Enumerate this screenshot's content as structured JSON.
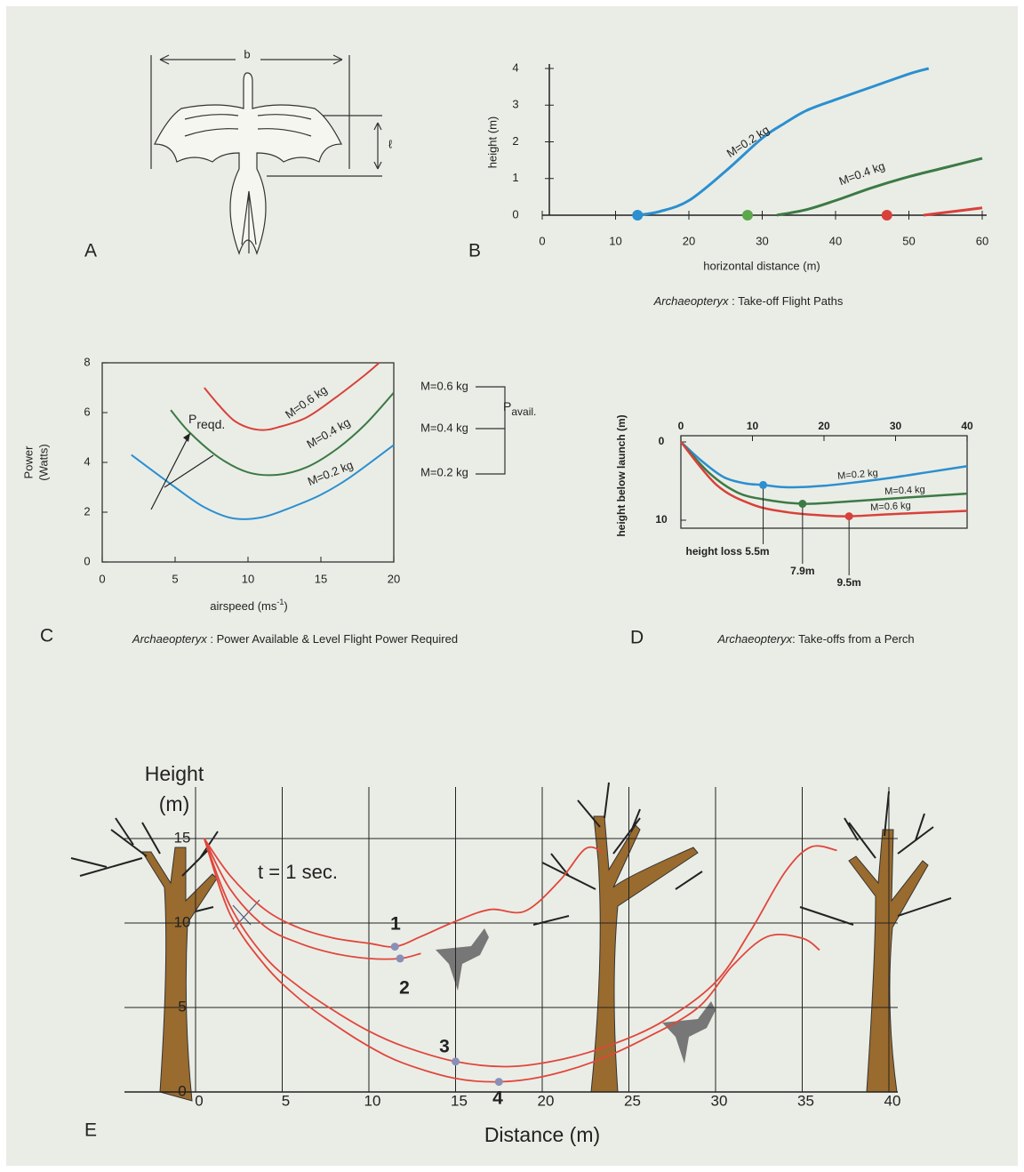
{
  "figure_a": {
    "label": "A",
    "span_label": "b",
    "length_label": "ℓ"
  },
  "chart_data": [
    {
      "type": "line",
      "label": "B",
      "title": [
        "Archaeopteryx",
        " : Take-off Flight Paths"
      ],
      "x_label": "horizontal distance (m)",
      "y_label": "height (m)",
      "xlim": [
        0,
        60
      ],
      "ylim": [
        0,
        4
      ],
      "xticks": [
        0,
        10,
        20,
        30,
        40,
        50,
        60
      ],
      "yticks": [
        0,
        1,
        2,
        3,
        4
      ],
      "series": [
        {
          "name": "M=0.2 kg",
          "color": "#2b8fd0",
          "x": [
            13,
            16,
            20,
            25,
            30,
            33,
            36,
            40,
            45,
            50,
            52.7
          ],
          "values": [
            0,
            0.1,
            0.4,
            1.2,
            2.1,
            2.5,
            2.85,
            3.15,
            3.5,
            3.85,
            4.0
          ]
        },
        {
          "name": "M=0.4 kg",
          "color": "#3c7a45",
          "x": [
            32,
            36,
            40,
            45,
            50,
            55,
            60
          ],
          "values": [
            0,
            0.15,
            0.4,
            0.75,
            1.05,
            1.3,
            1.55
          ]
        },
        {
          "color": "#d8413a",
          "x": [
            52,
            56,
            60
          ],
          "values": [
            0,
            0.1,
            0.2
          ]
        }
      ],
      "markers": {
        "x": [
          13,
          28,
          47
        ],
        "values": [
          0,
          0,
          0
        ],
        "colors": [
          "#2b8fd0",
          "#5aa84a",
          "#d8413a"
        ]
      }
    },
    {
      "type": "line",
      "label": "C",
      "title": [
        "Archaeopteryx",
        " : Power Available & Level Flight Power Required"
      ],
      "x_label": [
        "airspeed (ms",
        "-1",
        ")"
      ],
      "y_label": [
        "Power",
        "(Watts)"
      ],
      "xlim": [
        0,
        20
      ],
      "ylim": [
        0,
        8
      ],
      "xticks": [
        0,
        5,
        10,
        15,
        20
      ],
      "yticks": [
        0,
        2,
        4,
        6,
        8
      ],
      "series": [
        {
          "name": "M=0.6 kg",
          "color": "#d8413a",
          "x": [
            7,
            8,
            9,
            10,
            11,
            12,
            14,
            16,
            18,
            19
          ],
          "values": [
            7.0,
            6.3,
            5.7,
            5.4,
            5.3,
            5.4,
            5.8,
            6.6,
            7.5,
            8.0
          ]
        },
        {
          "name": "M=0.4 kg",
          "color": "#3c7a45",
          "x": [
            4.7,
            6,
            8,
            10,
            12,
            14,
            16,
            18,
            20
          ],
          "values": [
            6.1,
            5.2,
            4.2,
            3.6,
            3.5,
            3.8,
            4.5,
            5.5,
            6.8
          ]
        },
        {
          "name": "M=0.2 kg",
          "color": "#2b8fd0",
          "x": [
            2,
            5,
            7,
            9,
            11,
            13,
            15,
            17,
            20
          ],
          "values": [
            4.3,
            3.0,
            2.2,
            1.75,
            1.8,
            2.2,
            2.7,
            3.4,
            4.7
          ]
        }
      ],
      "required_label": [
        "P",
        "reqd."
      ],
      "available_label": [
        "P",
        "avail."
      ],
      "available_masses": [
        "M=0.6 kg",
        "M=0.4 kg",
        "M=0.2 kg"
      ]
    },
    {
      "type": "line",
      "label": "D",
      "title": [
        "Archaeopteryx",
        ":  Take-offs from a Perch"
      ],
      "y_label": "height below launch (m)",
      "xlim": [
        0,
        40
      ],
      "ylim": [
        0,
        10
      ],
      "y_inverted": true,
      "xticks": [
        0,
        10,
        20,
        30,
        40
      ],
      "yticks": [
        0,
        10
      ],
      "series": [
        {
          "name": "M=0.2 kg",
          "color": "#2b8fd0",
          "x": [
            0,
            3,
            6,
            9,
            11.5,
            15,
            20,
            25,
            30,
            35,
            40
          ],
          "values": [
            0,
            2.5,
            4.5,
            5.3,
            5.5,
            5.8,
            5.6,
            5.1,
            4.5,
            3.8,
            3.1
          ]
        },
        {
          "name": "M=0.4 kg",
          "color": "#3c7a45",
          "x": [
            0,
            4,
            8,
            12,
            17,
            22,
            30,
            40
          ],
          "values": [
            0,
            4,
            6.5,
            7.4,
            7.9,
            7.7,
            7.2,
            6.6
          ]
        },
        {
          "name": "M=0.6 kg",
          "color": "#d8413a",
          "x": [
            0,
            5,
            10,
            15,
            20,
            23.5,
            30,
            40
          ],
          "values": [
            0,
            5.5,
            8,
            9,
            9.4,
            9.5,
            9.2,
            8.8
          ]
        }
      ],
      "markers": {
        "x": [
          11.5,
          17,
          23.5
        ],
        "values": [
          5.5,
          7.9,
          9.5
        ],
        "value_labels": [
          "height loss 5.5m",
          "7.9m",
          "9.5m"
        ],
        "colors": [
          "#2b8fd0",
          "#3c7a45",
          "#d8413a"
        ]
      }
    },
    {
      "type": "line",
      "label": "E",
      "x_label": "Distance (m)",
      "y_label": [
        "Height",
        "(m)"
      ],
      "xlim": [
        0,
        40
      ],
      "ylim": [
        0,
        15
      ],
      "xticks": [
        0,
        5,
        10,
        15,
        20,
        25,
        30,
        35,
        40
      ],
      "yticks": [
        0,
        5,
        10,
        15
      ],
      "grid": true,
      "annotation": "t = 1 sec.",
      "series": [
        {
          "name": "1",
          "color": "#e0463c",
          "x": [
            0.5,
            2,
            4,
            6,
            8,
            10,
            11.5,
            13,
            15,
            17,
            19,
            21,
            22.5,
            23.5
          ],
          "values": [
            15,
            12.8,
            10.8,
            9.7,
            9.1,
            8.8,
            8.6,
            9.2,
            10.1,
            10.8,
            10.7,
            12.5,
            14.4,
            14.2
          ]
        },
        {
          "name": "2",
          "color": "#e0463c",
          "x": [
            0.5,
            2,
            4,
            6,
            8,
            10,
            11.8,
            13
          ],
          "values": [
            15,
            12,
            9.8,
            8.8,
            8.2,
            7.9,
            7.9,
            8.2
          ]
        },
        {
          "name": "3",
          "color": "#e0463c",
          "x": [
            0.5,
            2,
            4,
            6,
            8,
            10,
            12,
            15,
            18,
            21,
            24,
            27,
            30,
            32,
            34,
            35.5,
            37
          ],
          "values": [
            15,
            11,
            8,
            6.2,
            4.8,
            3.6,
            2.7,
            1.8,
            1.5,
            1.9,
            2.8,
            4.2,
            6.5,
            9.5,
            13,
            14.5,
            14.3
          ]
        },
        {
          "name": "4",
          "color": "#e0463c",
          "x": [
            0.5,
            2,
            4,
            6,
            8,
            10,
            12,
            15,
            17.5,
            20,
            23,
            26,
            29,
            31,
            33,
            35,
            36
          ],
          "values": [
            15,
            10.5,
            7.5,
            5.5,
            4.0,
            2.7,
            1.7,
            0.8,
            0.6,
            0.9,
            1.8,
            3.2,
            5,
            7.5,
            9.2,
            9.1,
            8.4
          ]
        }
      ],
      "markers": {
        "x": [
          11.5,
          11.8,
          15,
          17.5
        ],
        "values": [
          8.6,
          7.9,
          1.8,
          0.6
        ],
        "colors": [
          "#8a8fb8",
          "#8a8fb8",
          "#8a8fb8",
          "#8a8fb8"
        ]
      }
    }
  ]
}
